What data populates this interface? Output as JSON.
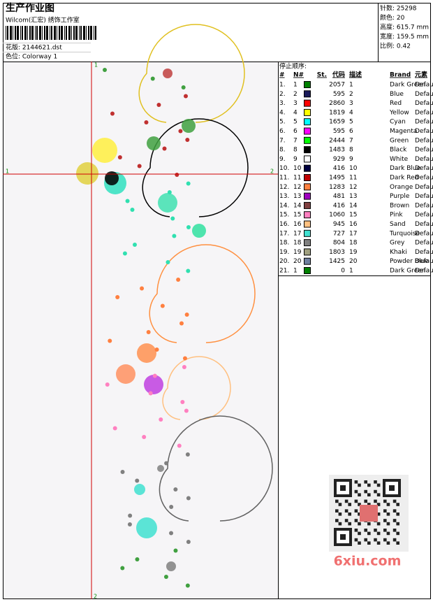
{
  "header": {
    "title": "生产作业图",
    "company": "Wilcom(汇宏) 绣饰工作室",
    "design": "花版: 2144621.dst",
    "colorway": "色位: Colorway 1"
  },
  "stats": [
    "针数: 25298",
    "颜色: 20",
    "高度: 615.7 mm",
    "宽度: 159.5 mm",
    "比例: 0.42"
  ],
  "canvas": {
    "marks": [
      "1",
      "1",
      "2",
      "2"
    ],
    "watermark": "6xiu.com"
  },
  "stop_sequence": {
    "title": "停止顺序:",
    "columns": [
      "#",
      "N#",
      "St.",
      "代码",
      "描述",
      "Brand",
      "元素"
    ],
    "rows": [
      [
        "1.",
        "1",
        "#008000",
        "2057",
        "1",
        "Dark Green",
        "Default"
      ],
      [
        "2.",
        "2",
        "#1a1a5a",
        "595",
        "2",
        "Blue",
        "Default"
      ],
      [
        "3.",
        "3",
        "#ff0000",
        "2860",
        "3",
        "Red",
        "Default"
      ],
      [
        "4.",
        "4",
        "#ffff00",
        "1819",
        "4",
        "Yellow",
        "Default"
      ],
      [
        "5.",
        "5",
        "#00ffff",
        "1659",
        "5",
        "Cyan",
        "Default"
      ],
      [
        "6.",
        "6",
        "#ff00ff",
        "595",
        "6",
        "Magenta",
        "Default"
      ],
      [
        "7.",
        "7",
        "#00ff00",
        "2444",
        "7",
        "Green",
        "Default"
      ],
      [
        "8.",
        "8",
        "#000000",
        "1483",
        "8",
        "Black",
        "Default"
      ],
      [
        "9.",
        "9",
        "#ffffff",
        "929",
        "9",
        "White",
        "Default"
      ],
      [
        "10.",
        "10",
        "#000040",
        "416",
        "10",
        "Dark Blue",
        "Default"
      ],
      [
        "11.",
        "11",
        "#c00000",
        "1495",
        "11",
        "Dark Red",
        "Default"
      ],
      [
        "12.",
        "12",
        "#ff8040",
        "1283",
        "12",
        "Orange",
        "Default"
      ],
      [
        "13.",
        "13",
        "#a000c0",
        "481",
        "13",
        "Purple",
        "Default"
      ],
      [
        "14.",
        "14",
        "#804040",
        "416",
        "14",
        "Brown",
        "Default"
      ],
      [
        "15.",
        "15",
        "#ff80c0",
        "1060",
        "15",
        "Pink",
        "Default"
      ],
      [
        "16.",
        "16",
        "#ffc080",
        "945",
        "16",
        "Sand",
        "Default"
      ],
      [
        "17.",
        "17",
        "#40e0d0",
        "727",
        "17",
        "Turquoise",
        "Default"
      ],
      [
        "18.",
        "18",
        "#808080",
        "804",
        "18",
        "Grey",
        "Default"
      ],
      [
        "19.",
        "19",
        "#a0a080",
        "1803",
        "19",
        "Khaki",
        "Default"
      ],
      [
        "20.",
        "20",
        "#7080a0",
        "1425",
        "20",
        "Powder Blue",
        "Default"
      ],
      [
        "21.",
        "1",
        "#008000",
        "0",
        "1",
        "Dark Green",
        "Default"
      ]
    ]
  }
}
